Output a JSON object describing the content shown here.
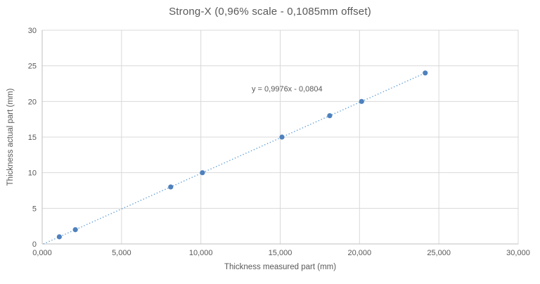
{
  "chart_data": {
    "type": "scatter",
    "title": "Strong-X (0,96% scale - 0,1085mm offset)",
    "xlabel": "Thickness measured part (mm)",
    "ylabel": "Thickness actual part (mm)",
    "xlim": [
      0,
      30
    ],
    "ylim": [
      0,
      30
    ],
    "grid": true,
    "legend": "none",
    "x_tick_labels": [
      "0,000",
      "5,000",
      "10,000",
      "15,000",
      "20,000",
      "25,000",
      "30,000"
    ],
    "x_tick_values": [
      0,
      5,
      10,
      15,
      20,
      25,
      30
    ],
    "y_tick_labels": [
      "0",
      "5",
      "10",
      "15",
      "20",
      "25",
      "30"
    ],
    "y_tick_values": [
      0,
      5,
      10,
      15,
      20,
      25,
      30
    ],
    "points": [
      {
        "x": 1.08,
        "y": 1
      },
      {
        "x": 2.09,
        "y": 2
      },
      {
        "x": 8.1,
        "y": 8
      },
      {
        "x": 10.1,
        "y": 10
      },
      {
        "x": 15.11,
        "y": 15
      },
      {
        "x": 18.12,
        "y": 18
      },
      {
        "x": 20.13,
        "y": 20
      },
      {
        "x": 24.14,
        "y": 24
      }
    ],
    "trendline": {
      "equation_label": "y = 0,9976x - 0,0804",
      "slope": 0.9976,
      "intercept": -0.0804,
      "x_range": [
        0.081,
        24.2
      ],
      "style": "dotted"
    },
    "colors": {
      "marker": "#4e81bd",
      "trendline": "#5b9bd5",
      "gridline": "#d9d9d9",
      "plot_border": "#d9d9d9",
      "axis_line": "#bfbfbf",
      "text": "#595959",
      "background": "#ffffff"
    }
  }
}
